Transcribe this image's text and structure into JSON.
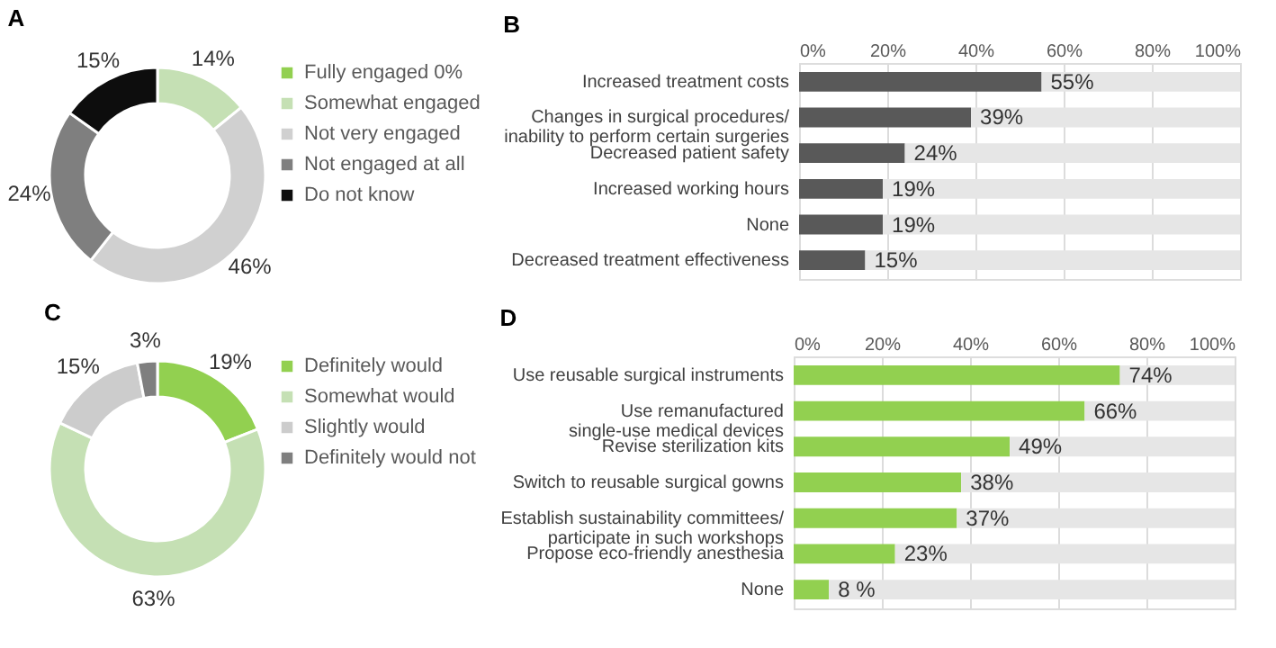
{
  "chart_data": [
    {
      "type": "donut",
      "title": "A",
      "categories": [
        "Fully engaged",
        "Somewhat engaged",
        "Not very engaged",
        "Not engaged at all",
        "Do not know"
      ],
      "values": [
        0,
        14,
        46,
        24,
        15
      ],
      "colors": [
        "#92d050",
        "#c5e0b4",
        "#d0d0d0",
        "#7f7f7f",
        "#0d0d0d"
      ],
      "value_labels": [
        "0%",
        "14%",
        "46%",
        "24%",
        "15%"
      ],
      "legend": "right"
    },
    {
      "type": "bar",
      "title": "B",
      "orientation": "horizontal",
      "categories": [
        "Increased treatment costs",
        "Changes in surgical procedures/ inability to perform certain surgeries",
        "Decreased patient safety",
        "Increased working hours",
        "None",
        "Decreased treatment effectiveness"
      ],
      "series": [
        {
          "color": "#595959",
          "values": [
            55,
            39,
            24,
            19,
            19,
            15
          ],
          "value_labels": [
            "55%",
            "39%",
            "24%",
            "19%",
            "19%",
            "15%"
          ]
        },
        {
          "color": "#e6e6e6",
          "values": [
            45,
            61,
            76,
            81,
            81,
            85
          ]
        }
      ],
      "stacked": true,
      "xlim": [
        0,
        100
      ],
      "xticks": [
        {
          "value": 0,
          "label": "0%"
        },
        {
          "value": 20,
          "label": "20%"
        },
        {
          "value": 40,
          "label": "40%"
        },
        {
          "value": 60,
          "label": "60%"
        },
        {
          "value": 80,
          "label": "80%"
        },
        {
          "value": 100,
          "label": "100%"
        }
      ],
      "grid": "x"
    },
    {
      "type": "donut",
      "title": "C",
      "categories": [
        "Definitely would",
        "Somewhat would",
        "Slightly would",
        "Definitely would not"
      ],
      "values": [
        19,
        63,
        15,
        3
      ],
      "colors": [
        "#92d050",
        "#c5e0b4",
        "#cccccc",
        "#7f7f7f"
      ],
      "value_labels": [
        "19%",
        "63%",
        "15%",
        "3%"
      ],
      "legend": "right"
    },
    {
      "type": "bar",
      "title": "D",
      "orientation": "horizontal",
      "categories": [
        "Use reusable surgical instruments",
        "Use remanufactured single-use medical devices",
        "Revise sterilization kits",
        "Switch to reusable surgical gowns",
        "Establish sustainability committees/ participate in such workshops",
        "Propose eco-friendly anesthesia",
        "None"
      ],
      "series": [
        {
          "color": "#92d050",
          "values": [
            74,
            66,
            49,
            38,
            37,
            23,
            8
          ],
          "value_labels": [
            "74%",
            "66%",
            "49%",
            "38%",
            "37%",
            "23%",
            "8 %"
          ]
        },
        {
          "color": "#e6e6e6",
          "values": [
            26,
            34,
            51,
            62,
            63,
            77,
            92
          ]
        }
      ],
      "stacked": true,
      "xlim": [
        0,
        100
      ],
      "xticks": [
        {
          "value": 0,
          "label": "0%"
        },
        {
          "value": 20,
          "label": "20%"
        },
        {
          "value": 40,
          "label": "40%"
        },
        {
          "value": 60,
          "label": "60%"
        },
        {
          "value": 80,
          "label": "80%"
        },
        {
          "value": 100,
          "label": "100%"
        }
      ],
      "grid": "x"
    }
  ]
}
